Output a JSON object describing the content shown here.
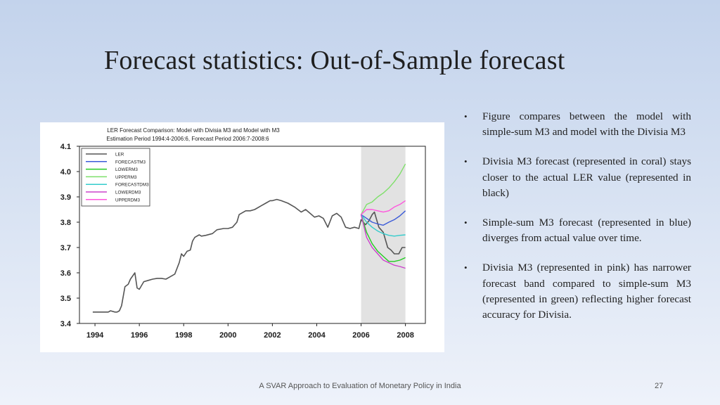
{
  "slide": {
    "title": "Forecast statistics: Out-of-Sample forecast",
    "footer": "A SVAR Approach to Evaluation of Monetary Policy in India",
    "page_number": "27"
  },
  "bullets": [
    "Figure compares between the model with simple-sum M3 and model with the Divisia M3",
    "Divisia M3 forecast (represented in coral) stays closer to the actual LER value (represented in black)",
    "Simple-sum M3 forecast (represented in blue) diverges from actual value over time.",
    "Divisia M3 (represented in pink) has narrower forecast band compared to simple-sum M3 (represented in green) reflecting higher forecast accuracy for Divisia."
  ],
  "chart_data": {
    "type": "line",
    "title": "LER Forecast Comparison: Model with Divisia M3 and Model with M3",
    "subtitle": "Estimation Period 1994:4-2006:6, Forecast Period 2006:7-2008:6",
    "xlabel": "",
    "ylabel": "",
    "xlim": [
      1993.3,
      2008.9
    ],
    "ylim": [
      3.4,
      4.1
    ],
    "xticks": [
      1994,
      1996,
      1998,
      2000,
      2002,
      2004,
      2006,
      2008
    ],
    "yticks": [
      3.4,
      3.5,
      3.6,
      3.7,
      3.8,
      3.9,
      4.0,
      4.1
    ],
    "grid": false,
    "legend_position": "top-left",
    "shaded_region": [
      2006.0,
      2008.0
    ],
    "series": [
      {
        "name": "LER",
        "color": "#555555",
        "x": [
          1993.9,
          1994.6,
          1994.7,
          1994.9,
          1995.0,
          1995.1,
          1995.2,
          1995.35,
          1995.5,
          1995.6,
          1995.8,
          1995.9,
          1996.0,
          1996.2,
          1996.4,
          1996.6,
          1996.8,
          1997.0,
          1997.2,
          1997.4,
          1997.6,
          1997.8,
          1997.9,
          1998.0,
          1998.15,
          1998.3,
          1998.4,
          1998.5,
          1998.7,
          1998.8,
          1999.0,
          1999.3,
          1999.5,
          1999.8,
          2000.0,
          2000.2,
          2000.4,
          2000.5,
          2000.7,
          2000.8,
          2001.0,
          2001.2,
          2001.5,
          2001.7,
          2001.9,
          2002.0,
          2002.2,
          2002.4,
          2002.7,
          2003.0,
          2003.3,
          2003.5,
          2003.7,
          2003.9,
          2004.1,
          2004.3,
          2004.5,
          2004.7,
          2004.9,
          2005.1,
          2005.3,
          2005.5,
          2005.7,
          2005.9,
          2006.0,
          2006.1,
          2006.2,
          2006.35,
          2006.5,
          2006.6,
          2006.8,
          2007.0,
          2007.2,
          2007.35,
          2007.5,
          2007.7,
          2007.85,
          2008.0
        ],
        "y": [
          3.445,
          3.445,
          3.45,
          3.445,
          3.445,
          3.45,
          3.47,
          3.545,
          3.555,
          3.575,
          3.6,
          3.54,
          3.535,
          3.565,
          3.57,
          3.575,
          3.578,
          3.578,
          3.575,
          3.585,
          3.595,
          3.64,
          3.675,
          3.665,
          3.685,
          3.69,
          3.725,
          3.74,
          3.75,
          3.745,
          3.748,
          3.755,
          3.77,
          3.775,
          3.775,
          3.78,
          3.8,
          3.83,
          3.84,
          3.845,
          3.845,
          3.85,
          3.865,
          3.875,
          3.885,
          3.885,
          3.89,
          3.885,
          3.875,
          3.86,
          3.84,
          3.85,
          3.835,
          3.82,
          3.825,
          3.815,
          3.78,
          3.825,
          3.835,
          3.82,
          3.78,
          3.775,
          3.78,
          3.775,
          3.81,
          3.8,
          3.79,
          3.805,
          3.83,
          3.84,
          3.78,
          3.76,
          3.7,
          3.69,
          3.675,
          3.675,
          3.7,
          3.7
        ]
      },
      {
        "name": "FORECASTM3",
        "color": "#3b5bd8",
        "x": [
          2006.0,
          2006.25,
          2006.5,
          2006.75,
          2007.0,
          2007.25,
          2007.5,
          2007.75,
          2008.0
        ],
        "y": [
          3.83,
          3.815,
          3.8,
          3.793,
          3.788,
          3.8,
          3.81,
          3.825,
          3.845
        ]
      },
      {
        "name": "LOWERM3",
        "color": "#22cc22",
        "x": [
          2006.0,
          2006.25,
          2006.5,
          2006.75,
          2007.0,
          2007.25,
          2007.5,
          2007.75,
          2008.0
        ],
        "y": [
          3.83,
          3.76,
          3.715,
          3.685,
          3.665,
          3.645,
          3.645,
          3.65,
          3.66
        ]
      },
      {
        "name": "UPPERM3",
        "color": "#7ee06a",
        "x": [
          2006.0,
          2006.25,
          2006.5,
          2006.75,
          2007.0,
          2007.25,
          2007.5,
          2007.75,
          2008.0
        ],
        "y": [
          3.83,
          3.87,
          3.88,
          3.9,
          3.915,
          3.935,
          3.96,
          3.99,
          4.03
        ]
      },
      {
        "name": "FORECASTDM3",
        "color": "#33cccc",
        "x": [
          2006.0,
          2006.25,
          2006.5,
          2006.75,
          2007.0,
          2007.25,
          2007.5,
          2007.75,
          2008.0
        ],
        "y": [
          3.83,
          3.8,
          3.78,
          3.765,
          3.755,
          3.748,
          3.745,
          3.748,
          3.75
        ]
      },
      {
        "name": "LOWERDM3",
        "color": "#cc44cc",
        "x": [
          2006.0,
          2006.25,
          2006.5,
          2006.75,
          2007.0,
          2007.25,
          2007.5,
          2007.75,
          2008.0
        ],
        "y": [
          3.83,
          3.74,
          3.7,
          3.675,
          3.65,
          3.64,
          3.63,
          3.625,
          3.618
        ]
      },
      {
        "name": "UPPERDM3",
        "color": "#ff55dd",
        "x": [
          2006.0,
          2006.25,
          2006.5,
          2006.75,
          2007.0,
          2007.25,
          2007.5,
          2007.75,
          2008.0
        ],
        "y": [
          3.83,
          3.85,
          3.85,
          3.845,
          3.84,
          3.845,
          3.86,
          3.87,
          3.885
        ]
      }
    ]
  }
}
